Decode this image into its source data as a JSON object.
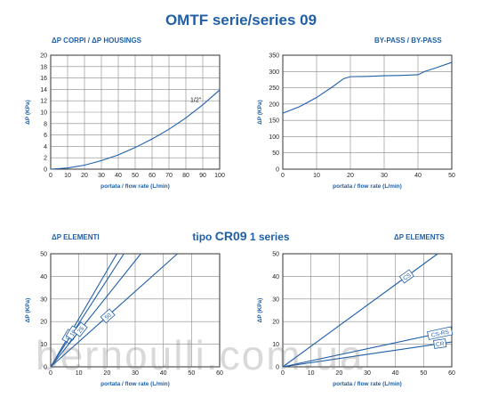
{
  "page": {
    "title": "OMTF serie/series 09",
    "subtitle_prefix": "tipo",
    "subtitle_model": "CR09",
    "subtitle_suffix": "1 series",
    "watermark": "bernoulli.com.ua"
  },
  "headings": {
    "top_left": "ΔP CORPI / ΔP HOUSINGS",
    "top_right": "BY-PASS / BY-PASS",
    "bottom_left": "ΔP ELEMENTI",
    "bottom_right": "ΔP ELEMENTS"
  },
  "colors": {
    "accent": "#1f5fa8",
    "grid": "#888888"
  },
  "chart_data": [
    {
      "type": "line",
      "xlabel": "portata / flow rate (L/min)",
      "ylabel": "ΔP (KPa)",
      "xlim": [
        0,
        100
      ],
      "ylim": [
        0,
        20
      ],
      "xticks": [
        0,
        10,
        20,
        30,
        40,
        50,
        60,
        70,
        80,
        90,
        100
      ],
      "yticks": [
        0,
        2,
        4,
        6,
        8,
        10,
        12,
        14,
        16,
        18,
        20
      ],
      "grid": true,
      "series": [
        {
          "name": "1/2\"",
          "x": [
            0,
            10,
            20,
            30,
            40,
            50,
            60,
            70,
            80,
            90,
            100
          ],
          "y": [
            0,
            0.2,
            0.7,
            1.5,
            2.5,
            3.8,
            5.3,
            7.0,
            9.0,
            11.3,
            13.9
          ]
        }
      ]
    },
    {
      "type": "line",
      "xlabel": "portata / flow rate (L/min)",
      "ylabel": "ΔP (KPa)",
      "xlim": [
        0,
        50
      ],
      "ylim": [
        0,
        350
      ],
      "xticks": [
        0,
        10,
        20,
        30,
        40,
        50
      ],
      "yticks": [
        0,
        50,
        100,
        150,
        200,
        250,
        300,
        350
      ],
      "grid": true,
      "series": [
        {
          "name": "",
          "x": [
            0,
            5,
            10,
            15,
            18,
            20,
            25,
            30,
            35,
            40,
            42,
            45,
            50
          ],
          "y": [
            172,
            192,
            220,
            255,
            278,
            284,
            285,
            287,
            288,
            290,
            300,
            310,
            328
          ]
        }
      ]
    },
    {
      "type": "line",
      "xlabel": "portata / flow rate (L/min)",
      "ylabel": "ΔP (KPa)",
      "xlim": [
        0,
        60
      ],
      "ylim": [
        0,
        50
      ],
      "xticks": [
        0,
        10,
        20,
        30,
        40,
        50,
        60
      ],
      "yticks": [
        0,
        10,
        20,
        30,
        40,
        50
      ],
      "grid": true,
      "series": [
        {
          "name": "05",
          "x": [
            0,
            23.5
          ],
          "y": [
            0,
            50
          ]
        },
        {
          "name": "10",
          "x": [
            0,
            26
          ],
          "y": [
            0,
            50
          ]
        },
        {
          "name": "25",
          "x": [
            0,
            32
          ],
          "y": [
            0,
            50
          ]
        },
        {
          "name": "50",
          "x": [
            0,
            45
          ],
          "y": [
            0,
            50
          ]
        }
      ]
    },
    {
      "type": "line",
      "xlabel": "portata / flow rate (L/min)",
      "ylabel": "ΔP (KPa)",
      "xlim": [
        0,
        60
      ],
      "ylim": [
        0,
        50
      ],
      "xticks": [
        0,
        10,
        20,
        30,
        40,
        50,
        60
      ],
      "yticks": [
        0,
        10,
        20,
        30,
        40,
        50
      ],
      "grid": true,
      "series": [
        {
          "name": "CS",
          "x": [
            0,
            55
          ],
          "y": [
            0,
            50
          ]
        },
        {
          "name": "CS-RS",
          "x": [
            0,
            60
          ],
          "y": [
            0,
            16
          ]
        },
        {
          "name": "CR",
          "x": [
            0,
            60
          ],
          "y": [
            0,
            11
          ]
        }
      ]
    }
  ]
}
